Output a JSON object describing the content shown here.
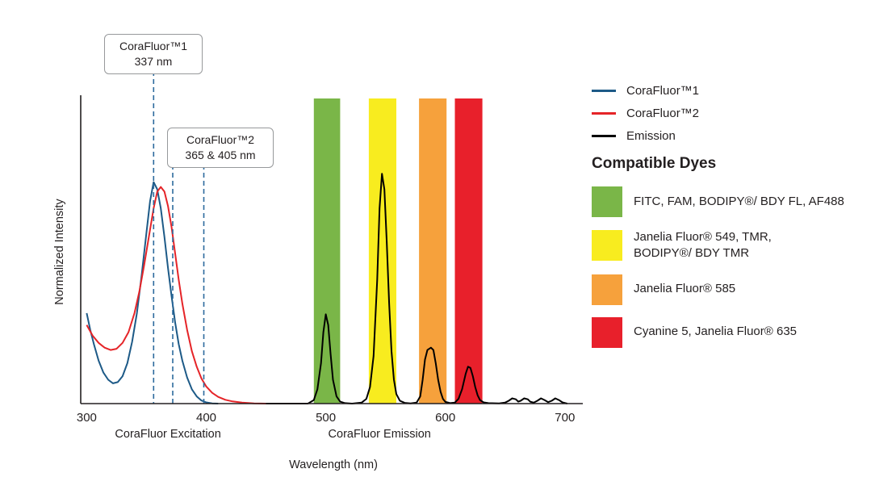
{
  "chart_data": {
    "type": "line",
    "title": "",
    "xlabel": "Wavelength (nm)",
    "ylabel": "Normalized Intensity",
    "xlim": [
      295,
      715
    ],
    "ylim": [
      0,
      1.05
    ],
    "x_ticks": [
      300,
      400,
      500,
      600,
      700
    ],
    "grid": false,
    "axis_color": "#231f20",
    "dash_color": "#2c6a9d",
    "section_labels": [
      {
        "text": "CoraFluor Excitation",
        "x_nm": 368
      },
      {
        "text": "CoraFluor Emission",
        "x_nm": 545
      }
    ],
    "bands": [
      {
        "name": "green-emission-band",
        "color": "#7ab648",
        "from_nm": 490,
        "to_nm": 512
      },
      {
        "name": "yellow-emission-band",
        "color": "#f8ec1f",
        "from_nm": 536,
        "to_nm": 559
      },
      {
        "name": "orange-emission-band",
        "color": "#f6a13c",
        "from_nm": 578,
        "to_nm": 601
      },
      {
        "name": "red-emission-band",
        "color": "#e8202b",
        "from_nm": 608,
        "to_nm": 631
      }
    ],
    "callouts": [
      {
        "title": "CoraFluor™1",
        "subtitle": "337 nm",
        "lines_nm": [
          356
        ]
      },
      {
        "title": "CoraFluor™2",
        "subtitle": "365 & 405 nm",
        "lines_nm": [
          372,
          398
        ]
      }
    ],
    "series": [
      {
        "name": "CoraFluor 1",
        "color": "#1d5a87",
        "points": [
          [
            300,
            0.38
          ],
          [
            303,
            0.31
          ],
          [
            306,
            0.25
          ],
          [
            310,
            0.18
          ],
          [
            314,
            0.13
          ],
          [
            318,
            0.1
          ],
          [
            322,
            0.085
          ],
          [
            326,
            0.09
          ],
          [
            330,
            0.115
          ],
          [
            334,
            0.17
          ],
          [
            338,
            0.26
          ],
          [
            342,
            0.38
          ],
          [
            346,
            0.54
          ],
          [
            350,
            0.72
          ],
          [
            353,
            0.85
          ],
          [
            356,
            0.93
          ],
          [
            359,
            0.9
          ],
          [
            362,
            0.82
          ],
          [
            365,
            0.7
          ],
          [
            368,
            0.57
          ],
          [
            371,
            0.45
          ],
          [
            374,
            0.34
          ],
          [
            377,
            0.25
          ],
          [
            380,
            0.18
          ],
          [
            384,
            0.11
          ],
          [
            388,
            0.06
          ],
          [
            392,
            0.03
          ],
          [
            396,
            0.013
          ],
          [
            400,
            0.005
          ],
          [
            405,
            0.001
          ],
          [
            410,
            0
          ]
        ]
      },
      {
        "name": "CoraFluor 2",
        "color": "#e52428",
        "points": [
          [
            300,
            0.33
          ],
          [
            305,
            0.285
          ],
          [
            310,
            0.255
          ],
          [
            315,
            0.235
          ],
          [
            320,
            0.225
          ],
          [
            325,
            0.23
          ],
          [
            330,
            0.255
          ],
          [
            335,
            0.3
          ],
          [
            340,
            0.38
          ],
          [
            344,
            0.47
          ],
          [
            348,
            0.58
          ],
          [
            352,
            0.7
          ],
          [
            356,
            0.82
          ],
          [
            359,
            0.89
          ],
          [
            362,
            0.91
          ],
          [
            365,
            0.89
          ],
          [
            368,
            0.83
          ],
          [
            371,
            0.74
          ],
          [
            374,
            0.63
          ],
          [
            377,
            0.52
          ],
          [
            380,
            0.42
          ],
          [
            384,
            0.31
          ],
          [
            388,
            0.22
          ],
          [
            392,
            0.155
          ],
          [
            396,
            0.105
          ],
          [
            400,
            0.072
          ],
          [
            405,
            0.045
          ],
          [
            410,
            0.028
          ],
          [
            416,
            0.016
          ],
          [
            422,
            0.009
          ],
          [
            430,
            0.004
          ],
          [
            440,
            0.001
          ],
          [
            450,
            0
          ]
        ]
      },
      {
        "name": "Emission",
        "color": "#000000",
        "points": [
          [
            450,
            0
          ],
          [
            485,
            0
          ],
          [
            490,
            0.015
          ],
          [
            493,
            0.06
          ],
          [
            496,
            0.17
          ],
          [
            498,
            0.3
          ],
          [
            500,
            0.375
          ],
          [
            502,
            0.33
          ],
          [
            504,
            0.21
          ],
          [
            506,
            0.1
          ],
          [
            509,
            0.03
          ],
          [
            512,
            0.008
          ],
          [
            516,
            0.002
          ],
          [
            522,
            0
          ],
          [
            530,
            0.004
          ],
          [
            534,
            0.02
          ],
          [
            537,
            0.07
          ],
          [
            540,
            0.2
          ],
          [
            543,
            0.52
          ],
          [
            545,
            0.82
          ],
          [
            547,
            0.965
          ],
          [
            549,
            0.9
          ],
          [
            551,
            0.68
          ],
          [
            553,
            0.42
          ],
          [
            555,
            0.22
          ],
          [
            557,
            0.1
          ],
          [
            559,
            0.04
          ],
          [
            562,
            0.012
          ],
          [
            566,
            0.003
          ],
          [
            571,
            0.001
          ],
          [
            576,
            0.004
          ],
          [
            579,
            0.03
          ],
          [
            581,
            0.1
          ],
          [
            583,
            0.185
          ],
          [
            585,
            0.225
          ],
          [
            588,
            0.235
          ],
          [
            590,
            0.225
          ],
          [
            592,
            0.17
          ],
          [
            594,
            0.1
          ],
          [
            596,
            0.05
          ],
          [
            598,
            0.02
          ],
          [
            600,
            0.007
          ],
          [
            604,
            0.002
          ],
          [
            608,
            0.004
          ],
          [
            611,
            0.02
          ],
          [
            614,
            0.06
          ],
          [
            617,
            0.125
          ],
          [
            619,
            0.155
          ],
          [
            621,
            0.15
          ],
          [
            623,
            0.115
          ],
          [
            625,
            0.07
          ],
          [
            627,
            0.035
          ],
          [
            629,
            0.015
          ],
          [
            632,
            0.005
          ],
          [
            636,
            0.002
          ],
          [
            645,
            0.001
          ],
          [
            650,
            0.004
          ],
          [
            653,
            0.012
          ],
          [
            656,
            0.022
          ],
          [
            659,
            0.018
          ],
          [
            661,
            0.008
          ],
          [
            663,
            0.012
          ],
          [
            666,
            0.022
          ],
          [
            669,
            0.018
          ],
          [
            671,
            0.008
          ],
          [
            674,
            0.004
          ],
          [
            677,
            0.012
          ],
          [
            680,
            0.022
          ],
          [
            683,
            0.015
          ],
          [
            686,
            0.006
          ],
          [
            689,
            0.012
          ],
          [
            692,
            0.022
          ],
          [
            695,
            0.015
          ],
          [
            698,
            0.005
          ],
          [
            702,
            0
          ]
        ]
      }
    ]
  },
  "legend": {
    "items": [
      {
        "label": "CoraFluor™1",
        "color": "#1d5a87"
      },
      {
        "label": "CoraFluor™2",
        "color": "#e52428"
      },
      {
        "label": "Emission",
        "color": "#000000"
      }
    ]
  },
  "compatible_dyes": {
    "heading": "Compatible Dyes",
    "items": [
      {
        "color": "#7ab648",
        "label": "FITC, FAM, BODIPY®/ BDY FL, AF488"
      },
      {
        "color": "#f8ec1f",
        "label": "Janelia Fluor® 549, TMR,\nBODIPY®/ BDY TMR"
      },
      {
        "color": "#f6a13c",
        "label": "Janelia Fluor® 585"
      },
      {
        "color": "#e8202b",
        "label": "Cyanine 5, Janelia Fluor® 635"
      }
    ]
  }
}
